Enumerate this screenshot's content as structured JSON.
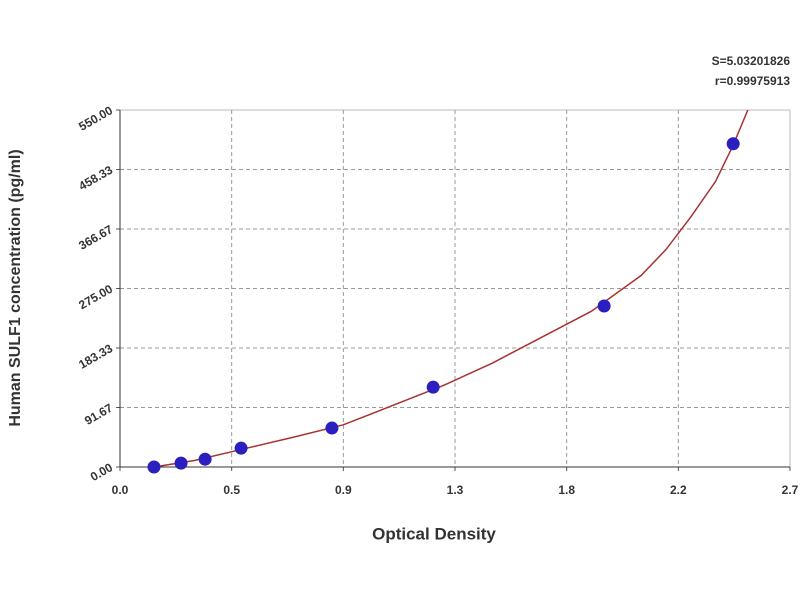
{
  "chart_data": {
    "type": "scatter",
    "xlabel": "Optical Density",
    "ylabel": "Human SULF1 concentration (pg/ml)",
    "annotations": [
      "S=5.03201826",
      "r=0.99975913"
    ],
    "x": [
      0.137,
      0.246,
      0.343,
      0.488,
      0.854,
      1.262,
      1.951,
      2.471
    ],
    "values": [
      0,
      6,
      12,
      29,
      60,
      123,
      248,
      498
    ],
    "color": "#2b1fc0",
    "fit": {
      "color": "#a83232",
      "x": [
        0.137,
        0.3,
        0.5,
        0.7,
        0.9,
        1.1,
        1.3,
        1.5,
        1.7,
        1.9,
        2.1,
        2.2,
        2.3,
        2.4,
        2.47,
        2.53
      ],
      "values": [
        0,
        10,
        28,
        46,
        65,
        95,
        125,
        160,
        200,
        240,
        295,
        335,
        385,
        440,
        495,
        550
      ]
    },
    "xlim": [
      0,
      2.7
    ],
    "xticks": [
      {
        "value": 0,
        "label": "0.0"
      },
      {
        "value": 0.45,
        "label": "0.5"
      },
      0.9,
      {
        "value": 1.35,
        "label": "1.3"
      },
      1.8,
      {
        "value": 2.25,
        "label": "2.2"
      },
      2.7
    ],
    "ylim": [
      0,
      550
    ],
    "yticks": [
      {
        "value": 0,
        "label": "0.00"
      },
      {
        "value": 91.67,
        "label": "91.67"
      },
      {
        "value": 183.33,
        "label": "183.33"
      },
      {
        "value": 275,
        "label": "275.00"
      },
      {
        "value": 366.67,
        "label": "366.67"
      },
      {
        "value": 458.33,
        "label": "458.33"
      },
      {
        "value": 550,
        "label": "550.00"
      }
    ],
    "grid": true
  }
}
